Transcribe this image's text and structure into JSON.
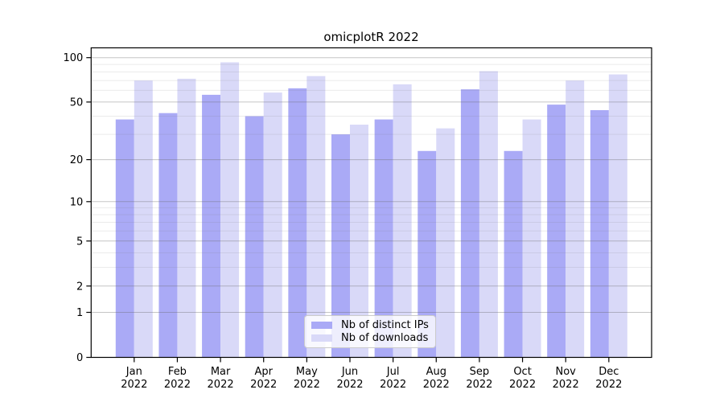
{
  "chart_data": {
    "type": "bar",
    "title": "omicplotR 2022",
    "x_year": "2022",
    "categories": [
      "Jan",
      "Feb",
      "Mar",
      "Apr",
      "May",
      "Jun",
      "Jul",
      "Aug",
      "Sep",
      "Oct",
      "Nov",
      "Dec"
    ],
    "series": [
      {
        "name": "Nb of distinct IPs",
        "color": "#aaaaf6",
        "values": [
          38,
          42,
          56,
          40,
          62,
          30,
          38,
          23,
          61,
          23,
          48,
          44
        ]
      },
      {
        "name": "Nb of downloads",
        "color": "#d9d9f8",
        "values": [
          70,
          72,
          93,
          58,
          75,
          35,
          66,
          33,
          81,
          38,
          70,
          77
        ]
      }
    ],
    "yscale": "log1p",
    "yticks": [
      0,
      1,
      2,
      5,
      10,
      20,
      50,
      100
    ],
    "yticks_minor": [
      3,
      4,
      6,
      7,
      8,
      9,
      30,
      40,
      60,
      70,
      80,
      90
    ],
    "ylim": [
      0,
      117
    ],
    "grid": true,
    "legend_position": "lower center"
  }
}
